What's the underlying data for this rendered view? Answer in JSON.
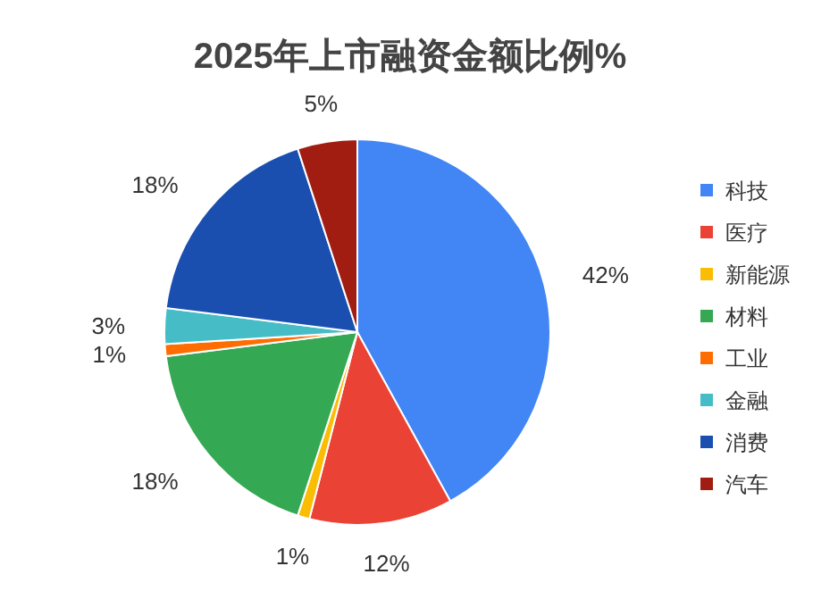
{
  "chart_data": {
    "type": "pie",
    "title": "2025年上市融资金额比例%",
    "categories": [
      "科技",
      "医疗",
      "新能源",
      "材料",
      "工业",
      "金融",
      "消费",
      "汽车"
    ],
    "values": [
      42,
      12,
      1,
      18,
      1,
      3,
      18,
      5
    ],
    "colors": [
      "#4285f4",
      "#ea4335",
      "#fbbc04",
      "#34a853",
      "#ff6d01",
      "#46bdc6",
      "#1a4fb0",
      "#a11d12"
    ],
    "value_labels": [
      "42%",
      "12%",
      "1%",
      "18%",
      "1%",
      "3%",
      "18%",
      "5%"
    ],
    "legend": "right"
  }
}
